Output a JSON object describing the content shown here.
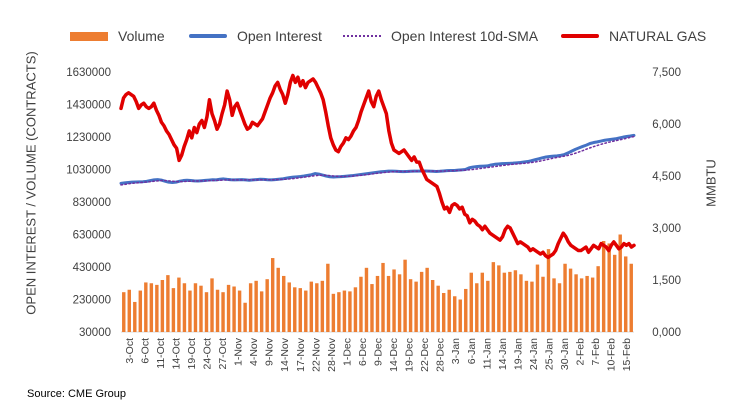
{
  "chart_data": {
    "type": "bar",
    "ylabel": "OPEN INTEREST / VOLUME (CONTRACTS)",
    "y2label": "MMBTU",
    "ylim": [
      30000,
      1630000
    ],
    "y2lim": [
      0,
      7.5
    ],
    "y_ticks": [
      "1630000",
      "1430000",
      "1230000",
      "1030000",
      "830000",
      "630000",
      "430000",
      "230000",
      "30000"
    ],
    "y2_ticks": [
      "7,500",
      "6,000",
      "4,500",
      "3,000",
      "1,500",
      "0,000"
    ],
    "y2_tick_values": [
      7.5,
      6.0,
      4.5,
      3.0,
      1.5,
      0.0
    ],
    "x_tick_labels": [
      "3-Oct",
      "6-Oct",
      "11-Oct",
      "14-Oct",
      "19-Oct",
      "24-Oct",
      "27-Oct",
      "1-Nov",
      "4-Nov",
      "9-Nov",
      "14-Nov",
      "17-Nov",
      "22-Nov",
      "28-Nov",
      "1-Dec",
      "6-Dec",
      "9-Dec",
      "14-Dec",
      "19-Dec",
      "22-Dec",
      "28-Dec",
      "3-Jan",
      "6-Jan",
      "11-Jan",
      "14-Jan",
      "19-Jan",
      "24-Jan",
      "25-Jan",
      "30-Jan",
      "2-Feb",
      "7-Feb",
      "10-Feb",
      "15-Feb"
    ],
    "series": [
      {
        "name": "Volume",
        "type": "bar",
        "axis": "left",
        "color": "#ED7D31",
        "values": [
          275000,
          290000,
          215000,
          285000,
          335000,
          330000,
          320000,
          350000,
          380000,
          300000,
          365000,
          330000,
          285000,
          330000,
          315000,
          275000,
          360000,
          290000,
          275000,
          320000,
          310000,
          285000,
          210000,
          330000,
          345000,
          280000,
          355000,
          485000,
          425000,
          375000,
          335000,
          305000,
          300000,
          285000,
          340000,
          330000,
          345000,
          450000,
          265000,
          275000,
          285000,
          280000,
          305000,
          370000,
          425000,
          325000,
          375000,
          455000,
          375000,
          415000,
          385000,
          475000,
          355000,
          340000,
          400000,
          425000,
          350000,
          315000,
          270000,
          290000,
          250000,
          230000,
          295000,
          395000,
          330000,
          395000,
          345000,
          460000,
          440000,
          395000,
          400000,
          410000,
          385000,
          345000,
          340000,
          445000,
          370000,
          540000,
          360000,
          330000,
          450000,
          420000,
          385000,
          360000,
          375000,
          365000,
          435000,
          590000,
          575000,
          505000,
          630000,
          495000,
          450000
        ]
      },
      {
        "name": "Open Interest",
        "type": "line",
        "axis": "left",
        "color": "#4472C4",
        "values": [
          945000,
          948000,
          950000,
          952000,
          953000,
          954000,
          955000,
          957000,
          962000,
          966000,
          968000,
          965000,
          958000,
          952000,
          950000,
          952000,
          958000,
          962000,
          964000,
          962000,
          960000,
          959000,
          961000,
          963000,
          965000,
          967000,
          966000,
          970000,
          972000,
          969000,
          967000,
          966000,
          967000,
          968000,
          966000,
          964000,
          966000,
          968000,
          970000,
          969000,
          967000,
          966000,
          968000,
          970000,
          972000,
          976000,
          980000,
          983000,
          985000,
          987000,
          990000,
          994000,
          998000,
          1005000,
          1002000,
          996000,
          990000,
          985000,
          984000,
          985000,
          986000,
          988000,
          990000,
          992000,
          995000,
          998000,
          1001000,
          1004000,
          1007000,
          1010000,
          1013000,
          1016000,
          1018000,
          1020000,
          1020000,
          1019000,
          1018000,
          1017000,
          1018000,
          1019000,
          1020000,
          1020000,
          1021000,
          1021000,
          1020000,
          1019000,
          1018000,
          1019000,
          1021000,
          1023000,
          1024000,
          1024000,
          1026000,
          1028000,
          1030000,
          1040000,
          1045000,
          1048000,
          1050000,
          1051000,
          1052000,
          1058000,
          1062000,
          1064000,
          1066000,
          1067000,
          1068000,
          1069000,
          1071000,
          1073000,
          1076000,
          1079000,
          1084000,
          1090000,
          1096000,
          1102000,
          1107000,
          1110000,
          1112000,
          1114000,
          1117000,
          1122000,
          1132000,
          1143000,
          1154000,
          1163000,
          1172000,
          1180000,
          1190000,
          1196000,
          1200000,
          1205000,
          1210000,
          1213000,
          1216000,
          1219000,
          1224000,
          1229000,
          1233000,
          1236000,
          1240000
        ]
      },
      {
        "name": "Open Interest 10d-SMA",
        "type": "line",
        "axis": "left",
        "color": "#7030A0",
        "style": "dotted",
        "values": [
          935000,
          938000,
          942000,
          945000,
          947000,
          949000,
          951000,
          953000,
          955000,
          958000,
          960000,
          962000,
          962000,
          960000,
          958000,
          956000,
          955000,
          956000,
          957000,
          958000,
          959000,
          959000,
          960000,
          960000,
          961000,
          962000,
          963000,
          964000,
          965000,
          966000,
          966000,
          966000,
          966000,
          966000,
          966000,
          966000,
          966000,
          966000,
          967000,
          967000,
          967000,
          967000,
          967000,
          968000,
          969000,
          970000,
          972000,
          974000,
          977000,
          980000,
          983000,
          986000,
          989000,
          992000,
          994000,
          995000,
          994000,
          992000,
          990000,
          988000,
          987000,
          987000,
          988000,
          989000,
          991000,
          993000,
          995000,
          998000,
          1001000,
          1004000,
          1007000,
          1009000,
          1012000,
          1014000,
          1016000,
          1017000,
          1018000,
          1018000,
          1018000,
          1018000,
          1019000,
          1019000,
          1019000,
          1020000,
          1020000,
          1020000,
          1020000,
          1020000,
          1020000,
          1021000,
          1022000,
          1023000,
          1024000,
          1025000,
          1026000,
          1028000,
          1030000,
          1033000,
          1036000,
          1039000,
          1042000,
          1045000,
          1048000,
          1051000,
          1054000,
          1057000,
          1060000,
          1062000,
          1064000,
          1066000,
          1068000,
          1070000,
          1073000,
          1076000,
          1080000,
          1085000,
          1090000,
          1095000,
          1100000,
          1104000,
          1108000,
          1112000,
          1117000,
          1123000,
          1130000,
          1138000,
          1146000,
          1155000,
          1163000,
          1171000,
          1178000,
          1185000,
          1191000,
          1197000,
          1202000,
          1207000,
          1212000,
          1217000,
          1222000,
          1228000,
          1233000
        ]
      },
      {
        "name": "NATURAL GAS",
        "type": "line",
        "axis": "right",
        "color": "#E00000",
        "values": [
          6.45,
          6.75,
          6.85,
          6.9,
          6.85,
          6.8,
          6.65,
          6.45,
          6.55,
          6.6,
          6.5,
          6.45,
          6.5,
          6.6,
          6.4,
          6.25,
          6.05,
          5.95,
          5.8,
          5.7,
          5.55,
          5.4,
          5.3,
          4.95,
          5.1,
          5.35,
          5.55,
          5.8,
          5.6,
          5.9,
          5.75,
          6.0,
          6.1,
          5.9,
          6.2,
          6.7,
          6.3,
          6.1,
          5.85,
          6.0,
          6.3,
          6.55,
          6.95,
          6.7,
          6.25,
          6.5,
          6.6,
          6.4,
          6.2,
          6.0,
          5.85,
          5.9,
          6.05,
          6.0,
          5.95,
          6.05,
          6.15,
          6.35,
          6.55,
          6.75,
          6.9,
          7.1,
          7.2,
          7.0,
          6.85,
          6.6,
          6.85,
          7.2,
          7.4,
          7.2,
          7.35,
          7.1,
          7.25,
          7.05,
          7.2,
          7.25,
          7.3,
          7.2,
          7.05,
          6.9,
          6.7,
          6.35,
          5.95,
          5.6,
          5.4,
          5.25,
          5.2,
          5.35,
          5.45,
          5.6,
          5.55,
          5.65,
          5.8,
          5.9,
          6.1,
          6.35,
          6.55,
          6.75,
          6.95,
          6.65,
          6.5,
          6.8,
          6.95,
          6.7,
          6.5,
          6.3,
          5.8,
          5.45,
          5.25,
          5.2,
          5.15,
          5.2,
          5.25,
          5.15,
          5.05,
          4.95,
          5.05,
          4.9,
          4.9,
          4.7,
          4.55,
          4.4,
          4.35,
          4.3,
          4.25,
          4.2,
          4.0,
          3.75,
          3.55,
          3.6,
          3.45,
          3.65,
          3.7,
          3.65,
          3.55,
          3.6,
          3.4,
          3.35,
          3.15,
          3.25,
          3.2,
          3.1,
          3.05,
          2.95,
          3.05,
          2.95,
          2.85,
          2.8,
          2.75,
          2.7,
          2.65,
          2.75,
          2.95,
          3.05,
          3.0,
          2.85,
          2.7,
          2.55,
          2.6,
          2.55,
          2.5,
          2.45,
          2.35,
          2.4,
          2.35,
          2.3,
          2.25,
          2.3,
          2.2,
          2.15,
          2.2,
          2.25,
          2.35,
          2.55,
          2.7,
          2.85,
          2.75,
          2.6,
          2.5,
          2.45,
          2.4,
          2.35,
          2.35,
          2.4,
          2.45,
          2.3,
          2.4,
          2.5,
          2.45,
          2.4,
          2.55,
          2.5,
          2.45,
          2.35,
          2.5,
          2.6,
          2.5,
          2.4,
          2.45,
          2.55,
          2.5,
          2.55,
          2.45,
          2.5
        ]
      }
    ]
  },
  "legend": {
    "volume": "Volume",
    "open_interest": "Open Interest",
    "oi_sma": "Open Interest 10d-SMA",
    "natural_gas": "NATURAL GAS"
  },
  "source": "Source: CME Group",
  "colors": {
    "volume": "#ED7D31",
    "open_interest": "#4472C4",
    "oi_sma": "#7030A0",
    "natural_gas": "#E00000",
    "axis": "#D9D9D9"
  }
}
